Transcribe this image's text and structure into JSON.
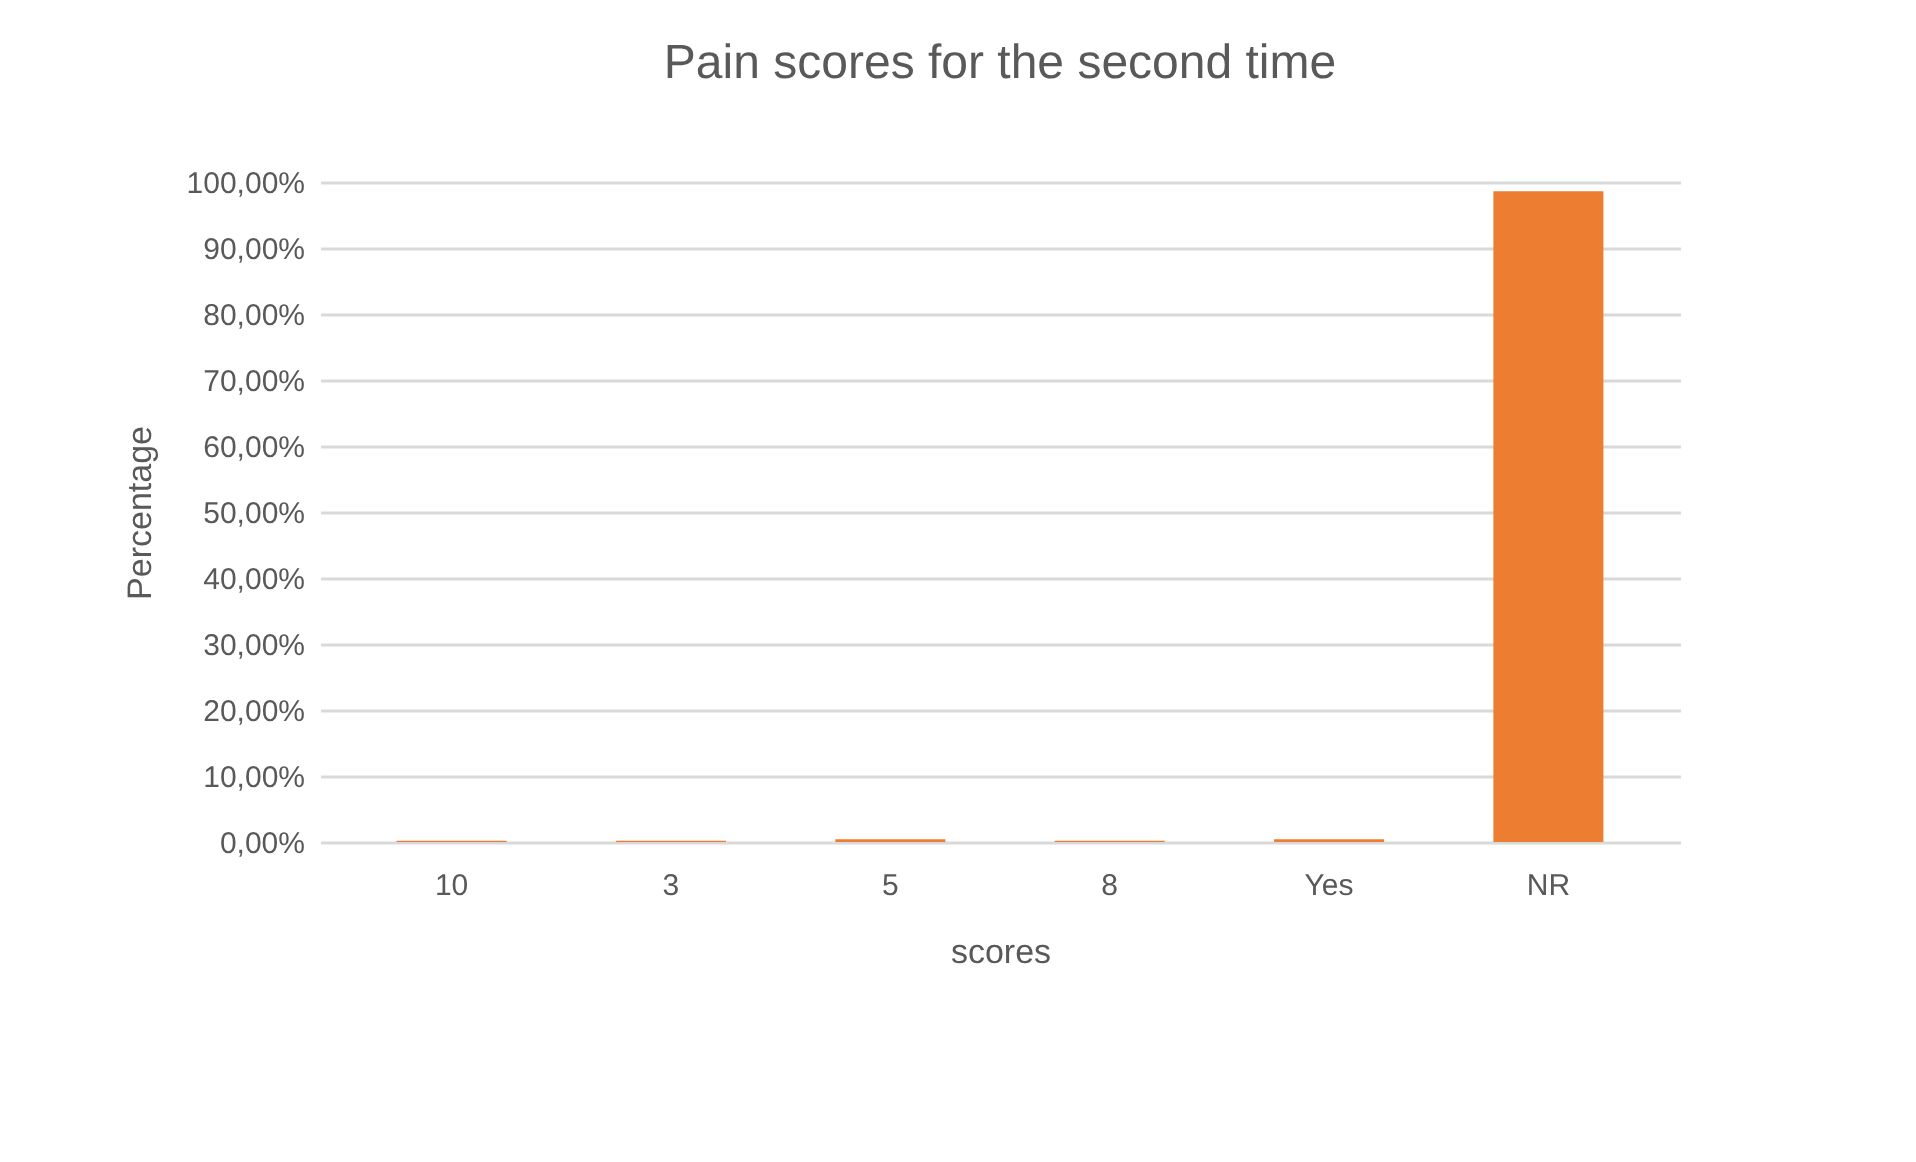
{
  "chart_data": {
    "type": "bar",
    "title": "Pain scores  for the second time",
    "xlabel": "scores",
    "ylabel": "Percentage",
    "categories": [
      "10",
      "3",
      "5",
      "8",
      "Yes",
      "NR"
    ],
    "values": [
      0.2,
      0.2,
      0.4,
      0.2,
      0.4,
      98.6
    ],
    "color": "#ed7d31",
    "ylim": [
      0,
      100
    ],
    "yticks": [
      {
        "value": 0,
        "label": "0,00%"
      },
      {
        "value": 10,
        "label": "10,00%"
      },
      {
        "value": 20,
        "label": "20,00%"
      },
      {
        "value": 30,
        "label": "30,00%"
      },
      {
        "value": 40,
        "label": "40,00%"
      },
      {
        "value": 50,
        "label": "50,00%"
      },
      {
        "value": 60,
        "label": "60,00%"
      },
      {
        "value": 70,
        "label": "70,00%"
      },
      {
        "value": 80,
        "label": "80,00%"
      },
      {
        "value": 90,
        "label": "90,00%"
      },
      {
        "value": 100,
        "label": "100,00%"
      }
    ],
    "grid": "y"
  }
}
